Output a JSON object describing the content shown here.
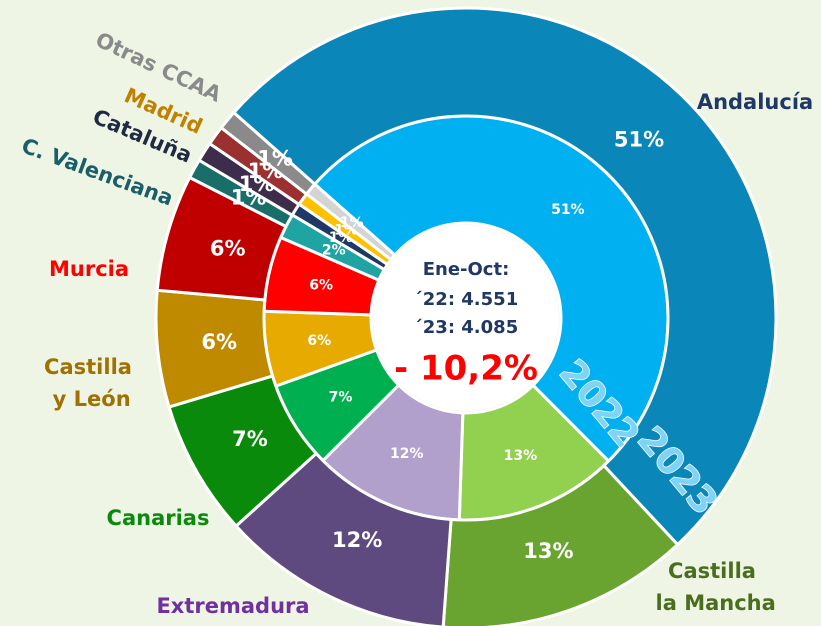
{
  "chart_data": {
    "type": "donut",
    "categories": [
      "Andalucía",
      "Castilla la Mancha",
      "Extremadura",
      "Canarias",
      "Castilla y León",
      "Murcia",
      "C. Valenciana",
      "Cataluña",
      "Madrid",
      "Otras CCAA"
    ],
    "category_colors": [
      "#1f3864",
      "#4a6e1e",
      "#7030a0",
      "#0a8a0a",
      "#a07000",
      "#ff0000",
      "#1a5e6a",
      "#1f2a44",
      "#c08000",
      "#8a8a8a"
    ],
    "series": [
      {
        "name": "2022",
        "values": [
          51,
          13,
          12,
          7,
          6,
          6,
          2,
          1,
          1,
          1
        ],
        "value_labels": [
          "51%",
          "13%",
          "12%",
          "7%",
          "6%",
          "6%",
          "2%",
          "1%",
          "1%",
          "1%"
        ],
        "colors": [
          "#00b0f0",
          "#92d050",
          "#b1a0cc",
          "#00b050",
          "#e6aa00",
          "#ff0000",
          "#1fa3a3",
          "#1f3864",
          "#ffc000",
          "#d4d4d4"
        ]
      },
      {
        "name": "2023",
        "values": [
          51,
          13,
          12,
          7,
          6,
          6,
          1,
          1,
          1,
          1
        ],
        "value_labels": [
          "51%",
          "13%",
          "12%",
          "7%",
          "6%",
          "6%",
          "1%",
          "1%",
          "1%",
          "1%"
        ],
        "colors": [
          "#0a86b8",
          "#6aa430",
          "#5e4a7e",
          "#0a8a0a",
          "#c08a00",
          "#c00000",
          "#1a6e6a",
          "#3d2d4a",
          "#9a3030",
          "#8a8a8a"
        ]
      }
    ],
    "center_text": [
      "Ene-Oct:",
      "´22: 4.551",
      "´23: 4.085",
      "- 10,2%"
    ]
  }
}
